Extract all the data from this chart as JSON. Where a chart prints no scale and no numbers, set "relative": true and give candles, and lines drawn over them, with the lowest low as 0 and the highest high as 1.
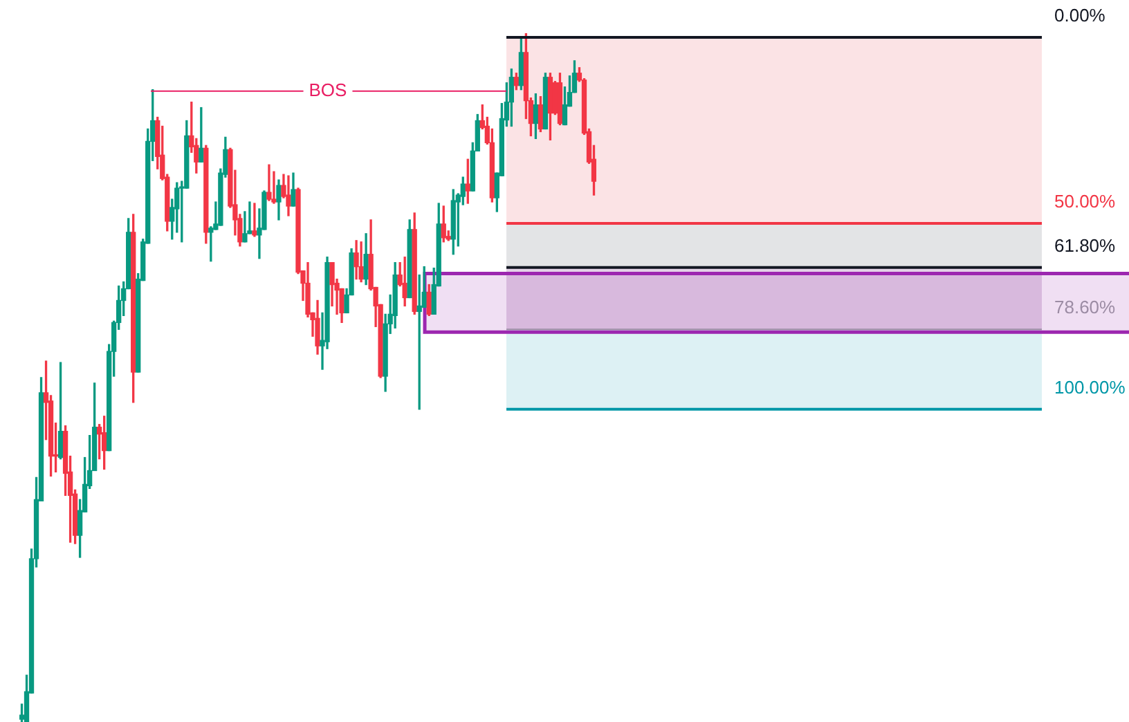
{
  "chart_data": {
    "type": "candlestick",
    "relative": true,
    "categories": [
      null,
      null,
      null,
      null,
      null,
      null,
      null,
      null,
      null,
      null,
      null,
      null,
      null,
      null,
      null,
      null,
      null,
      null,
      null,
      null,
      null,
      null,
      null,
      null,
      null,
      null,
      null,
      null,
      null,
      null,
      null,
      null,
      null,
      null,
      null,
      null,
      null,
      null,
      null,
      null,
      null,
      null,
      null,
      null,
      null,
      null,
      null,
      null,
      null,
      null,
      null,
      null,
      null,
      null,
      null,
      null,
      null,
      null,
      null,
      null,
      null,
      null,
      null,
      null,
      null,
      null,
      null,
      null,
      null,
      null,
      null,
      null,
      null,
      null,
      null,
      null,
      null,
      null,
      null,
      null,
      null,
      null,
      null,
      null,
      null,
      null,
      null,
      null,
      null,
      null,
      null,
      null,
      null,
      null,
      null,
      null,
      null,
      null,
      null,
      null,
      null,
      null,
      null,
      null,
      null,
      null,
      null,
      null,
      null,
      null,
      null,
      null,
      null,
      null,
      null,
      null,
      null,
      null,
      null
    ],
    "ohlc": [
      [
        0.004,
        0.026,
        0,
        0.01
      ],
      [
        0,
        0.068,
        0,
        0.044
      ],
      [
        0.042,
        0.251,
        0.042,
        0.237
      ],
      [
        0.237,
        0.355,
        0.225,
        0.323
      ],
      [
        0.321,
        0.5,
        0.321,
        0.478
      ],
      [
        0.478,
        0.524,
        0.41,
        0.464
      ],
      [
        0.466,
        0.474,
        0.357,
        0.386
      ],
      [
        0.388,
        0.434,
        0.363,
        0.386
      ],
      [
        0.384,
        0.522,
        0.382,
        0.422
      ],
      [
        0.422,
        0.43,
        0.329,
        0.361
      ],
      [
        0.363,
        0.386,
        0.261,
        0.329
      ],
      [
        0.331,
        0.337,
        0.259,
        0.271
      ],
      [
        0.271,
        0.323,
        0.239,
        0.307
      ],
      [
        0.305,
        0.384,
        0.305,
        0.345
      ],
      [
        0.343,
        0.416,
        0.339,
        0.365
      ],
      [
        0.365,
        0.492,
        0.365,
        0.428
      ],
      [
        0.428,
        0.432,
        0.382,
        0.418
      ],
      [
        0.42,
        0.444,
        0.367,
        0.394
      ],
      [
        0.394,
        0.548,
        0.394,
        0.538
      ],
      [
        0.538,
        0.582,
        0.502,
        0.58
      ],
      [
        0.58,
        0.633,
        0.57,
        0.612
      ],
      [
        0.612,
        0.639,
        0.59,
        0.629
      ],
      [
        0.629,
        0.731,
        0.629,
        0.711
      ],
      [
        0.711,
        0.737,
        0.464,
        0.508
      ],
      [
        0.508,
        0.651,
        0.508,
        0.643
      ],
      [
        0.641,
        0.701,
        0.641,
        0.697
      ],
      [
        0.695,
        0.861,
        0.695,
        0.843
      ],
      [
        0.843,
        0.918,
        0.815,
        0.873
      ],
      [
        0.873,
        0.878,
        0.803,
        0.821
      ],
      [
        0.823,
        0.865,
        0.787,
        0.789
      ],
      [
        0.791,
        0.795,
        0.713,
        0.727
      ],
      [
        0.727,
        0.759,
        0.701,
        0.747
      ],
      [
        0.745,
        0.783,
        0.711,
        0.775
      ],
      [
        0.775,
        0.785,
        0.697,
        0.777
      ],
      [
        0.775,
        0.873,
        0.775,
        0.851
      ],
      [
        0.851,
        0.9,
        0.827,
        0.835
      ],
      [
        0.837,
        0.847,
        0.797,
        0.813
      ],
      [
        0.813,
        0.892,
        0.813,
        0.833
      ],
      [
        0.833,
        0.837,
        0.695,
        0.711
      ],
      [
        0.711,
        0.719,
        0.669,
        0.717
      ],
      [
        0.715,
        0.755,
        0.715,
        0.723
      ],
      [
        0.721,
        0.803,
        0.721,
        0.797
      ],
      [
        0.795,
        0.849,
        0.791,
        0.831
      ],
      [
        0.831,
        0.833,
        0.747,
        0.749
      ],
      [
        0.751,
        0.801,
        0.707,
        0.729
      ],
      [
        0.731,
        0.737,
        0.691,
        0.697
      ],
      [
        0.697,
        0.741,
        0.697,
        0.709
      ],
      [
        0.709,
        0.755,
        0.709,
        0.713
      ],
      [
        0.713,
        0.753,
        0.705,
        0.707
      ],
      [
        0.707,
        0.745,
        0.673,
        0.717
      ],
      [
        0.715,
        0.771,
        0.715,
        0.769
      ],
      [
        0.769,
        0.809,
        0.757,
        0.759
      ],
      [
        0.759,
        0.799,
        0.753,
        0.755
      ],
      [
        0.755,
        0.787,
        0.729,
        0.779
      ],
      [
        0.779,
        0.795,
        0.761,
        0.763
      ],
      [
        0.765,
        0.793,
        0.735,
        0.749
      ],
      [
        0.749,
        0.797,
        0.749,
        0.773
      ],
      [
        0.773,
        0.775,
        0.651,
        0.653
      ],
      [
        0.655,
        0.655,
        0.612,
        0.637
      ],
      [
        0.637,
        0.667,
        0.588,
        0.592
      ],
      [
        0.594,
        0.594,
        0.56,
        0.584
      ],
      [
        0.586,
        0.612,
        0.534,
        0.546
      ],
      [
        0.546,
        0.594,
        0.512,
        0.554
      ],
      [
        0.552,
        0.675,
        0.542,
        0.667
      ],
      [
        0.667,
        0.667,
        0.604,
        0.635
      ],
      [
        0.637,
        0.643,
        0.592,
        0.627
      ],
      [
        0.629,
        0.629,
        0.58,
        0.594
      ],
      [
        0.594,
        0.629,
        0.594,
        0.62
      ],
      [
        0.62,
        0.687,
        0.62,
        0.681
      ],
      [
        0.681,
        0.699,
        0.643,
        0.661
      ],
      [
        0.661,
        0.697,
        0.639,
        0.643
      ],
      [
        0.643,
        0.709,
        0.635,
        0.679
      ],
      [
        0.679,
        0.729,
        0.627,
        0.629
      ],
      [
        0.631,
        0.631,
        0.574,
        0.604
      ],
      [
        0.606,
        0.606,
        0.5,
        0.502
      ],
      [
        0.502,
        0.592,
        0.48,
        0.578
      ],
      [
        0.578,
        0.62,
        0.564,
        0.592
      ],
      [
        0.59,
        0.667,
        0.572,
        0.649
      ],
      [
        0.649,
        0.667,
        0.633,
        0.635
      ],
      [
        0.637,
        0.675,
        0.604,
        0.616
      ],
      [
        0.616,
        0.729,
        0.616,
        0.715
      ],
      [
        0.715,
        0.739,
        0.592,
        0.596
      ],
      [
        0.596,
        0.649,
        0.454,
        0.604
      ],
      [
        0.602,
        0.661,
        0.602,
        0.624
      ],
      [
        0.624,
        0.635,
        0.59,
        0.592
      ],
      [
        0.592,
        0.659,
        0.592,
        0.635
      ],
      [
        0.633,
        0.753,
        0.633,
        0.723
      ],
      [
        0.723,
        0.749,
        0.697,
        0.703
      ],
      [
        0.705,
        0.713,
        0.699,
        0.701
      ],
      [
        0.701,
        0.773,
        0.679,
        0.757
      ],
      [
        0.755,
        0.767,
        0.691,
        0.765
      ],
      [
        0.763,
        0.791,
        0.751,
        0.781
      ],
      [
        0.781,
        0.817,
        0.753,
        0.771
      ],
      [
        0.771,
        0.841,
        0.771,
        0.829
      ],
      [
        0.829,
        0.882,
        0.829,
        0.873
      ],
      [
        0.873,
        0.896,
        0.861,
        0.863
      ],
      [
        0.865,
        0.878,
        0.839,
        0.841
      ],
      [
        0.841,
        0.861,
        0.755,
        0.761
      ],
      [
        0.761,
        0.797,
        0.741,
        0.797
      ],
      [
        0.793,
        0.898,
        0.793,
        0.876
      ],
      [
        0.874,
        0.928,
        0.865,
        0.9
      ],
      [
        0.9,
        0.948,
        0.865,
        0.936
      ],
      [
        0.936,
        0.942,
        0.918,
        0.924
      ],
      [
        0.924,
        0.992,
        0.918,
        0.972
      ],
      [
        0.972,
        1,
        0.876,
        0.902
      ],
      [
        0.902,
        0.906,
        0.851,
        0.869
      ],
      [
        0.869,
        0.912,
        0.847,
        0.896
      ],
      [
        0.896,
        0.908,
        0.857,
        0.861
      ],
      [
        0.861,
        0.942,
        0.861,
        0.936
      ],
      [
        0.936,
        0.942,
        0.845,
        0.884
      ],
      [
        0.928,
        0.93,
        0.882,
        0.884
      ],
      [
        0.928,
        0.942,
        0.867,
        0.869
      ],
      [
        0.867,
        0.922,
        0.867,
        0.896
      ],
      [
        0.894,
        0.938,
        0.894,
        0.914
      ],
      [
        0.914,
        0.96,
        0.914,
        0.942
      ],
      [
        0.942,
        0.95,
        0.93,
        0.932
      ],
      [
        0.932,
        0.934,
        0.853,
        0.855
      ],
      [
        0.857,
        0.861,
        0.811,
        0.813
      ],
      [
        0.817,
        0.837,
        0.765,
        0.785
      ]
    ],
    "ref_lines": [
      {
        "axis": "y",
        "value": 0.916,
        "label": "BOS",
        "color": "#e91e63"
      },
      {
        "axis": "y",
        "value": 0.994,
        "color": "#131722"
      },
      {
        "axis": "y",
        "value": 0.724,
        "color": "#f23645"
      },
      {
        "axis": "y",
        "value": 0.66,
        "color": "#131722"
      },
      {
        "axis": "y",
        "value": 0.57,
        "color": "#9c8ca4"
      },
      {
        "axis": "y",
        "value": 0.454,
        "color": "#0097a7"
      }
    ],
    "annotations": [
      "0.00%",
      "50.00%",
      "61.80%",
      "78.60%",
      "100.00%"
    ],
    "bands": [
      {
        "axis": "y",
        "from": 0.724,
        "to": 0.994,
        "color": "#fbe3e5"
      },
      {
        "axis": "y",
        "from": 0.66,
        "to": 0.724,
        "color": "#e3e4e6"
      },
      {
        "axis": "y",
        "from": 0.57,
        "to": 0.66,
        "color": "#e3d3e6"
      },
      {
        "axis": "y",
        "from": 0.454,
        "to": 0.57,
        "color": "#ddf1f4"
      },
      {
        "axis": "y",
        "from": 0.566,
        "to": 0.651,
        "color": "#9c27b0"
      }
    ]
  }
}
